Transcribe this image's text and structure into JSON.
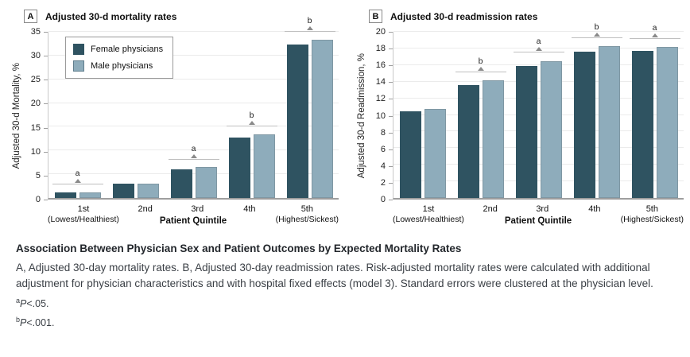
{
  "colors": {
    "female": "#2f5361",
    "male": "#8eacbb",
    "male_bar_border": "#7f97a3",
    "gridline": "#ebebeb",
    "axis": "#9e9e9e",
    "annotation_line": "#bfbfbf",
    "annotation_marker": "#8a8a8a"
  },
  "chart_data": [
    {
      "type": "bar",
      "panel_key": "A",
      "title": "Adjusted 30-d mortality rates",
      "ylabel": "Adjusted 30-d Mortality, %",
      "xlabel": "Patient Quintile",
      "ylim": [
        0,
        35
      ],
      "ytick_step": 5,
      "grid": true,
      "categories": [
        "1st",
        "2nd",
        "3rd",
        "4th",
        "5th"
      ],
      "category_sublabels": [
        "(Lowest/Healthiest)",
        "",
        "",
        "",
        "(Highest/Sickest)"
      ],
      "series": [
        {
          "name": "Female physicians",
          "values": [
            1.1,
            3.0,
            6.1,
            12.8,
            32.3
          ]
        },
        {
          "name": "Male physicians",
          "values": [
            1.2,
            3.1,
            6.5,
            13.4,
            33.4
          ]
        }
      ],
      "annotations": [
        {
          "group": 0,
          "label": "a",
          "y": 2.9
        },
        {
          "group": 2,
          "label": "a",
          "y": 8.1
        },
        {
          "group": 3,
          "label": "b",
          "y": 15.1
        },
        {
          "group": 4,
          "label": "b",
          "y": 35.0
        }
      ],
      "legend": {
        "position": "top-left",
        "items": [
          {
            "label": "Female physicians",
            "color": "#2f5361"
          },
          {
            "label": "Male physicians",
            "color": "#8eacbb",
            "border": "#5f7d8c"
          }
        ]
      }
    },
    {
      "type": "bar",
      "panel_key": "B",
      "title": "Adjusted 30-d readmission rates",
      "ylabel": "Adjusted 30-d Readmission, %",
      "xlabel": "Patient Quintile",
      "ylim": [
        0,
        20
      ],
      "ytick_step": 2,
      "grid": true,
      "categories": [
        "1st",
        "2nd",
        "3rd",
        "4th",
        "5th"
      ],
      "category_sublabels": [
        "(Lowest/Healthiest)",
        "",
        "",
        "",
        "(Highest/Sickest)"
      ],
      "series": [
        {
          "name": "Female physicians",
          "values": [
            10.4,
            13.6,
            15.9,
            17.6,
            17.7
          ]
        },
        {
          "name": "Male physicians",
          "values": [
            10.7,
            14.2,
            16.5,
            18.3,
            18.2
          ]
        }
      ],
      "annotations": [
        {
          "group": 1,
          "label": "b",
          "y": 15.1
        },
        {
          "group": 2,
          "label": "a",
          "y": 17.5
        },
        {
          "group": 3,
          "label": "b",
          "y": 19.2
        },
        {
          "group": 4,
          "label": "a",
          "y": 19.1
        }
      ],
      "legend": null
    }
  ],
  "caption": {
    "title": "Association Between Physician Sex and Patient Outcomes by Expected Mortality Rates",
    "body": "A, Adjusted 30-day mortality rates. B, Adjusted 30-day readmission rates. Risk-adjusted mortality rates were calculated with additional adjustment for physician characteristics and with hospital fixed effects (model 3). Standard errors were clustered at the physician level.",
    "footnotes": [
      {
        "marker": "a",
        "p": "P",
        "rest": "<.05."
      },
      {
        "marker": "b",
        "p": "P",
        "rest": "<.001."
      }
    ]
  }
}
